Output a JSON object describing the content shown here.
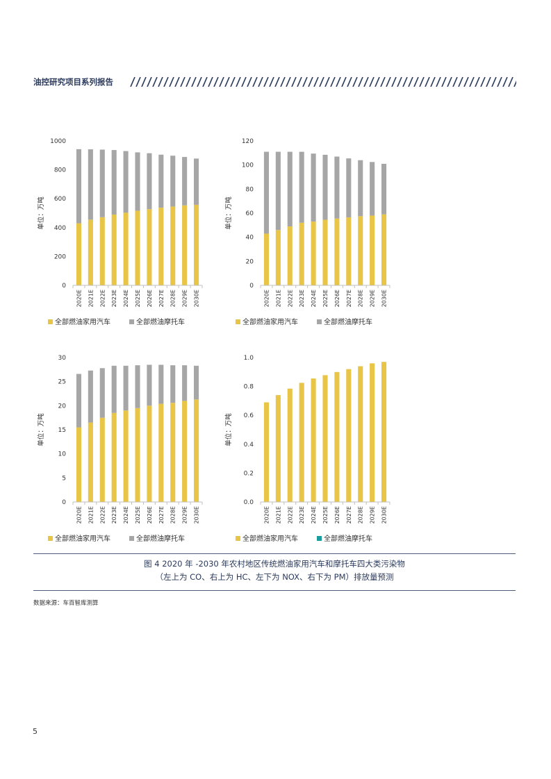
{
  "header": {
    "title": "油控研究项目系列报告"
  },
  "colors": {
    "car": "#e8c547",
    "motorcycle": "#a6a6a6",
    "motorcycle_pm_legend": "#1a9c9c",
    "axis": "#bfbfbf",
    "rule": "#4d5a78",
    "title_text": "#2b3a5c"
  },
  "chart_data": [
    {
      "type": "bar",
      "stacked": true,
      "title": "CO",
      "ylabel": "单位：万吨",
      "ylim": [
        0,
        1000
      ],
      "yticks": [
        "0",
        "200",
        "400",
        "600",
        "800",
        "1000"
      ],
      "categories": [
        "2020E",
        "2021E",
        "2022E",
        "2023E",
        "2024E",
        "2025E",
        "2026E",
        "2027E",
        "2028E",
        "2029E",
        "2030E"
      ],
      "series": [
        {
          "name": "全部燃油家用汽车",
          "color": "#e8c547",
          "values": [
            430,
            455,
            472,
            490,
            503,
            517,
            528,
            538,
            546,
            554,
            558
          ]
        },
        {
          "name": "全部燃油摩托车",
          "color": "#a6a6a6",
          "values": [
            513,
            487,
            468,
            447,
            427,
            404,
            387,
            367,
            352,
            335,
            320
          ]
        }
      ],
      "legend": [
        "全部燃油家用汽车",
        "全部燃油摩托车"
      ]
    },
    {
      "type": "bar",
      "stacked": true,
      "title": "HC",
      "ylabel": "单位：万吨",
      "ylim": [
        0,
        120
      ],
      "yticks": [
        "0",
        "20",
        "40",
        "60",
        "80",
        "100",
        "120"
      ],
      "categories": [
        "2020E",
        "2021E",
        "2022E",
        "2023E",
        "2024E",
        "2025E",
        "2026E",
        "2027E",
        "2028E",
        "2029E",
        "2030E"
      ],
      "series": [
        {
          "name": "全部燃油家用汽车",
          "color": "#e8c547",
          "values": [
            43,
            46,
            49,
            52,
            53,
            54.5,
            55.5,
            56.5,
            57.5,
            58,
            59
          ]
        },
        {
          "name": "全部燃油摩托车",
          "color": "#a6a6a6",
          "values": [
            68,
            65,
            62,
            59,
            56.5,
            54,
            51.5,
            49,
            46.5,
            44.5,
            42
          ]
        }
      ],
      "legend": [
        "全部燃油家用汽车",
        "全部燃油摩托车"
      ]
    },
    {
      "type": "bar",
      "stacked": true,
      "title": "NOX",
      "ylabel": "单位：万吨",
      "ylim": [
        0,
        30
      ],
      "yticks": [
        "0",
        "5",
        "10",
        "15",
        "20",
        "25",
        "30"
      ],
      "categories": [
        "2020E",
        "2021E",
        "2022E",
        "2023E",
        "2024E",
        "2025E",
        "2026E",
        "2027E",
        "2028E",
        "2029E",
        "2030E"
      ],
      "series": [
        {
          "name": "全部燃油家用汽车",
          "color": "#e8c547",
          "values": [
            15.5,
            16.5,
            17.5,
            18.5,
            19.0,
            19.5,
            20.0,
            20.4,
            20.6,
            21.0,
            21.3
          ]
        },
        {
          "name": "全部燃油摩托车",
          "color": "#a6a6a6",
          "values": [
            11.1,
            10.8,
            10.3,
            9.8,
            9.3,
            8.9,
            8.5,
            8.1,
            7.8,
            7.4,
            7.0
          ]
        }
      ],
      "legend": [
        "全部燃油家用汽车",
        "全部燃油摩托车"
      ]
    },
    {
      "type": "bar",
      "stacked": true,
      "title": "PM",
      "ylabel": "单位：万吨",
      "ylim": [
        0,
        1.0
      ],
      "yticks": [
        "0.0",
        "0.2",
        "0.4",
        "0.6",
        "0.8",
        "1.0"
      ],
      "categories": [
        "2020E",
        "2021E",
        "2022E",
        "2023E",
        "2024E",
        "2025E",
        "2026E",
        "2027E",
        "2028E",
        "2029E",
        "2030E"
      ],
      "series": [
        {
          "name": "全部燃油家用汽车",
          "color": "#e8c547",
          "values": [
            0.69,
            0.74,
            0.785,
            0.825,
            0.855,
            0.878,
            0.9,
            0.92,
            0.94,
            0.96,
            0.97
          ]
        },
        {
          "name": "全部燃油摩托车",
          "color": "#1a9c9c",
          "values": [
            0,
            0,
            0,
            0,
            0,
            0,
            0,
            0,
            0,
            0,
            0
          ]
        }
      ],
      "legend": [
        "全部燃油家用汽车",
        "全部燃油摩托车"
      ]
    }
  ],
  "caption": {
    "line1": "图 4 2020 年 -2030 年农村地区传统燃油家用汽车和摩托车四大类污染物",
    "line2": "（左上为 CO、右上为 HC、左下为 NOX、右下为 PM）排放量预测"
  },
  "source": "数据来源：车百智库测算",
  "page_number": "5"
}
